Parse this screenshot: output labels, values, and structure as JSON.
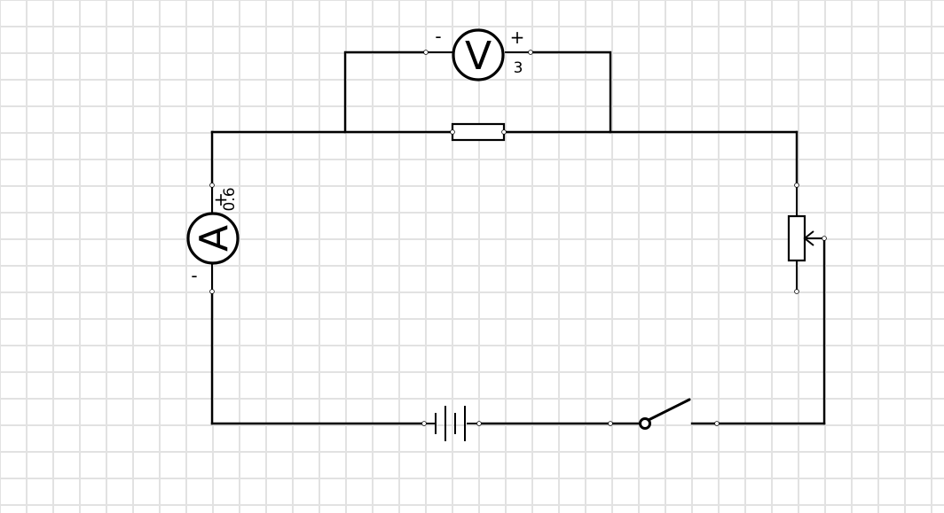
{
  "voltmeter": {
    "symbol": "V",
    "negative_label": "-",
    "positive_label": "+",
    "range_label": "3"
  },
  "ammeter": {
    "symbol": "A",
    "positive_label": "+",
    "negative_label": "-",
    "range_label": "0.6"
  },
  "components": {
    "resistor": "resistor-icon",
    "battery": "battery-icon",
    "switch": "switch-open-icon",
    "rheostat": "rheostat-icon"
  },
  "colors": {
    "wire": "#000000",
    "grid": "#e2e2e2",
    "background": "#ffffff"
  }
}
